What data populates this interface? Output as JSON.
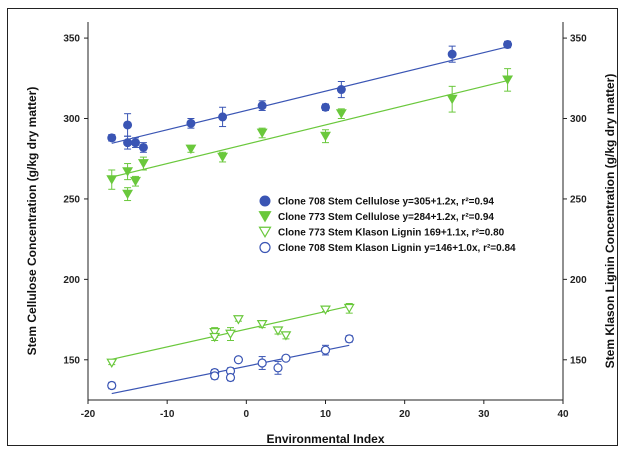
{
  "chart_data": {
    "type": "scatter",
    "title": "",
    "xlabel": "Environmental Index",
    "ylabel_left": "Stem Cellulose Concentration (g/kg dry matter)",
    "ylabel_right": "Stem Klason Lignin Concentration (g/kg dry matter)",
    "xlim": [
      -20,
      40
    ],
    "ylim": [
      125,
      360
    ],
    "x_ticks": [
      -20,
      -10,
      0,
      10,
      20,
      30,
      40
    ],
    "y_ticks": [
      150,
      200,
      250,
      300,
      350
    ],
    "grid": false,
    "legend_position": "right-center",
    "series": [
      {
        "name": "Clone 708 Stem Cellulose y=305+1.2x, r²=0.94",
        "marker": "circle-filled",
        "color": "#3a55b4",
        "fit": [
          305,
          1.2
        ],
        "fit_range": [
          -17,
          33
        ],
        "points": [
          {
            "x": -17,
            "y": 288,
            "err": 2
          },
          {
            "x": -15,
            "y": 296,
            "err": 7
          },
          {
            "x": -15,
            "y": 285,
            "err": 4
          },
          {
            "x": -14,
            "y": 285,
            "err": 3
          },
          {
            "x": -13,
            "y": 282,
            "err": 3
          },
          {
            "x": -7,
            "y": 297,
            "err": 3
          },
          {
            "x": -3,
            "y": 301,
            "err": 6
          },
          {
            "x": 2,
            "y": 308,
            "err": 3
          },
          {
            "x": 10,
            "y": 307,
            "err": 2
          },
          {
            "x": 12,
            "y": 318,
            "err": 5
          },
          {
            "x": 26,
            "y": 340,
            "err": 5
          },
          {
            "x": 33,
            "y": 346,
            "err": 2
          }
        ]
      },
      {
        "name": "Clone 773 Stem Cellulose y=284+1.2x, r²=0.94",
        "marker": "triangle-down-filled",
        "color": "#6ac83c",
        "fit": [
          284,
          1.2
        ],
        "fit_range": [
          -17,
          33
        ],
        "points": [
          {
            "x": -17,
            "y": 262,
            "err": 6
          },
          {
            "x": -15,
            "y": 267,
            "err": 5
          },
          {
            "x": -15,
            "y": 253,
            "err": 4
          },
          {
            "x": -14,
            "y": 261,
            "err": 3
          },
          {
            "x": -13,
            "y": 272,
            "err": 4
          },
          {
            "x": -7,
            "y": 281,
            "err": 2
          },
          {
            "x": -3,
            "y": 276,
            "err": 3
          },
          {
            "x": 2,
            "y": 291,
            "err": 3
          },
          {
            "x": 10,
            "y": 289,
            "err": 4
          },
          {
            "x": 12,
            "y": 303,
            "err": 3
          },
          {
            "x": 26,
            "y": 312,
            "err": 8
          },
          {
            "x": 33,
            "y": 324,
            "err": 7
          }
        ]
      },
      {
        "name": "Clone 773 Stem Klason Lignin 169+1.1x, r²=0.80",
        "marker": "triangle-down-open",
        "color": "#6ac83c",
        "fit": [
          169,
          1.1
        ],
        "fit_range": [
          -17,
          13
        ],
        "points": [
          {
            "x": -17,
            "y": 148,
            "err": 1
          },
          {
            "x": -4,
            "y": 167,
            "err": 3
          },
          {
            "x": -4,
            "y": 164,
            "err": 2
          },
          {
            "x": -2,
            "y": 166,
            "err": 4
          },
          {
            "x": -1,
            "y": 175,
            "err": 1
          },
          {
            "x": 2,
            "y": 172,
            "err": 2
          },
          {
            "x": 4,
            "y": 168,
            "err": 2
          },
          {
            "x": 5,
            "y": 165,
            "err": 2
          },
          {
            "x": 10,
            "y": 181,
            "err": 1
          },
          {
            "x": 13,
            "y": 182,
            "err": 3
          }
        ]
      },
      {
        "name": "Clone 708 Stem Klason Lignin y=146+1.0x, r²=0.84",
        "marker": "circle-open",
        "color": "#3a55b4",
        "fit": [
          146,
          1.0
        ],
        "fit_range": [
          -17,
          13
        ],
        "points": [
          {
            "x": -17,
            "y": 134,
            "err": 2
          },
          {
            "x": -4,
            "y": 142,
            "err": 2
          },
          {
            "x": -4,
            "y": 140,
            "err": 2
          },
          {
            "x": -2,
            "y": 143,
            "err": 2
          },
          {
            "x": -2,
            "y": 139,
            "err": 2
          },
          {
            "x": -1,
            "y": 150,
            "err": 1
          },
          {
            "x": 2,
            "y": 148,
            "err": 4
          },
          {
            "x": 4,
            "y": 145,
            "err": 4
          },
          {
            "x": 5,
            "y": 151,
            "err": 1
          },
          {
            "x": 10,
            "y": 156,
            "err": 3
          },
          {
            "x": 13,
            "y": 163,
            "err": 2
          }
        ]
      }
    ]
  }
}
